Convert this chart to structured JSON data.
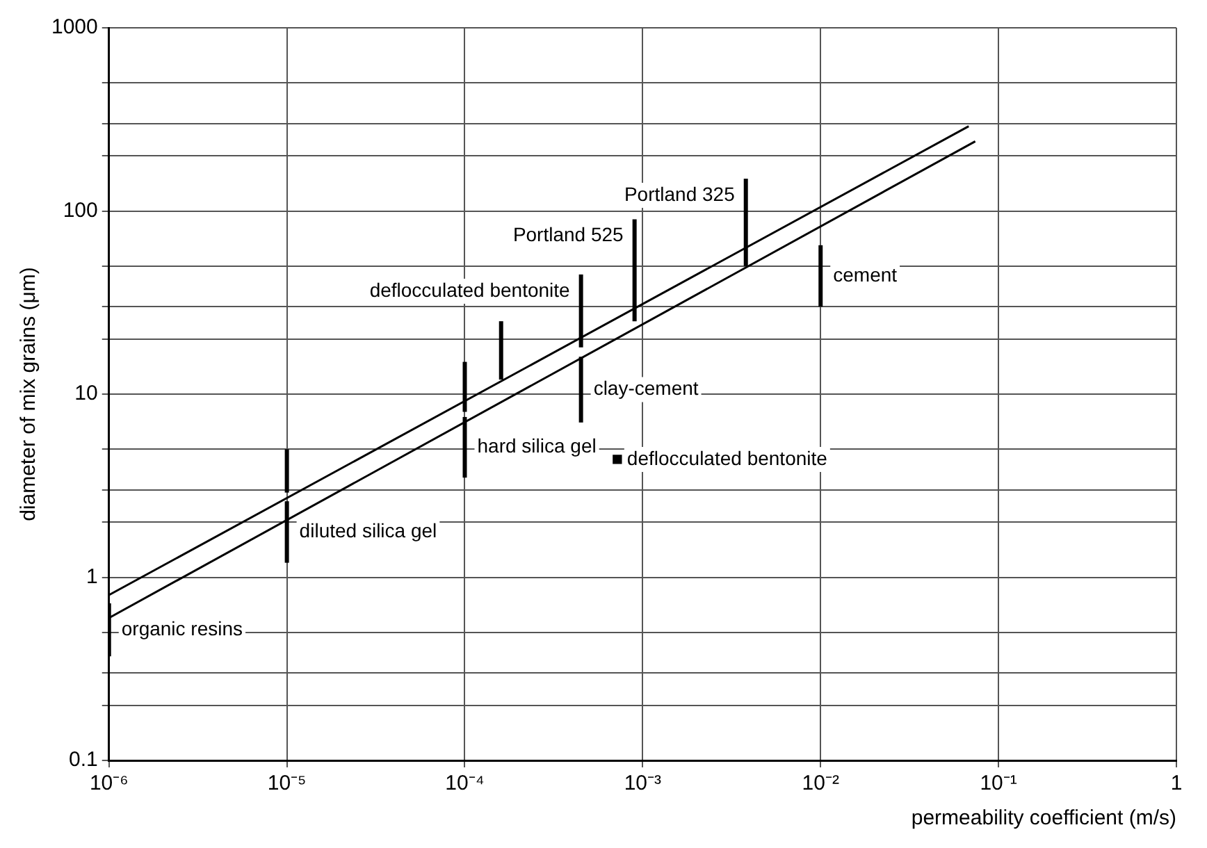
{
  "chart_data": {
    "type": "line",
    "xlabel": "permeability coefficient (m/s)",
    "ylabel": "diameter of mix grains (μm)",
    "log": "xy",
    "grid": true,
    "legend": false,
    "line_style": "solid",
    "xlim": [
      1e-06,
      1
    ],
    "ylim": [
      0.1,
      1000
    ],
    "xticks": [
      {
        "value": 1e-06,
        "label": "10⁻⁶"
      },
      {
        "value": 1e-05,
        "label": "10⁻⁵"
      },
      {
        "value": 0.0001,
        "label": "10⁻⁴"
      },
      {
        "value": 0.001,
        "label": "10⁻³"
      },
      {
        "value": 0.01,
        "label": "10⁻²"
      },
      {
        "value": 0.1,
        "label": "10⁻¹"
      },
      1
    ],
    "yticks": [
      0.1,
      {
        "value": 0.2,
        "label": null
      },
      {
        "value": 0.3,
        "label": null
      },
      {
        "value": 0.5,
        "label": null
      },
      1,
      {
        "value": 2,
        "label": null
      },
      {
        "value": 3,
        "label": null
      },
      {
        "value": 5,
        "label": null
      },
      10,
      {
        "value": 20,
        "label": null
      },
      {
        "value": 30,
        "label": null
      },
      {
        "value": 50,
        "label": null
      },
      100,
      {
        "value": 200,
        "label": null
      },
      {
        "value": 300,
        "label": null
      },
      {
        "value": 500,
        "label": null
      },
      1000
    ],
    "series": [
      {
        "type": "line",
        "color": "#000000",
        "x": [
          1e-06,
          0.068
        ],
        "values": [
          0.8,
          290
        ]
      },
      {
        "type": "line",
        "color": "#000000",
        "x": [
          1e-06,
          0.074
        ],
        "values": [
          0.6,
          240
        ]
      },
      {
        "type": "line",
        "name": "organic resins",
        "color": "#000000",
        "x": [
          1e-06,
          1e-06
        ],
        "values": [
          0.37,
          0.72
        ]
      },
      {
        "type": "line",
        "color": "#000000",
        "x": [
          1e-05,
          1e-05
        ],
        "values": [
          2.9,
          5
        ]
      },
      {
        "type": "line",
        "name": "diluted silica gel",
        "color": "#000000",
        "x": [
          1e-05,
          1e-05
        ],
        "values": [
          1.2,
          2.6
        ]
      },
      {
        "type": "line",
        "color": "#000000",
        "x": [
          0.0001,
          0.0001
        ],
        "values": [
          8,
          15
        ]
      },
      {
        "type": "line",
        "name": "hard silica gel",
        "color": "#000000",
        "x": [
          0.0001,
          0.0001
        ],
        "values": [
          3.5,
          7.5
        ]
      },
      {
        "type": "line",
        "color": "#000000",
        "x": [
          0.00016,
          0.00016
        ],
        "values": [
          12,
          25
        ]
      },
      {
        "type": "line",
        "name": "deflocculated bentonite",
        "color": "#000000",
        "x": [
          0.00045,
          0.00045
        ],
        "values": [
          18,
          45
        ]
      },
      {
        "type": "line",
        "name": "clay-cement",
        "color": "#000000",
        "x": [
          0.00045,
          0.00045
        ],
        "values": [
          7,
          16
        ]
      },
      {
        "type": "line",
        "name": "Portland 525",
        "color": "#000000",
        "x": [
          0.0009,
          0.0009
        ],
        "values": [
          25,
          90
        ]
      },
      {
        "type": "line",
        "name": "Portland 325",
        "color": "#000000",
        "x": [
          0.0038,
          0.0038
        ],
        "values": [
          50,
          150
        ]
      },
      {
        "type": "line",
        "name": "cement",
        "color": "#000000",
        "x": [
          0.01,
          0.01
        ],
        "values": [
          30,
          65
        ]
      },
      {
        "type": "scatter",
        "name": "deflocculated bentonite",
        "color": "#000000",
        "x": [
          0.00072
        ],
        "values": [
          4.4
        ]
      }
    ]
  }
}
